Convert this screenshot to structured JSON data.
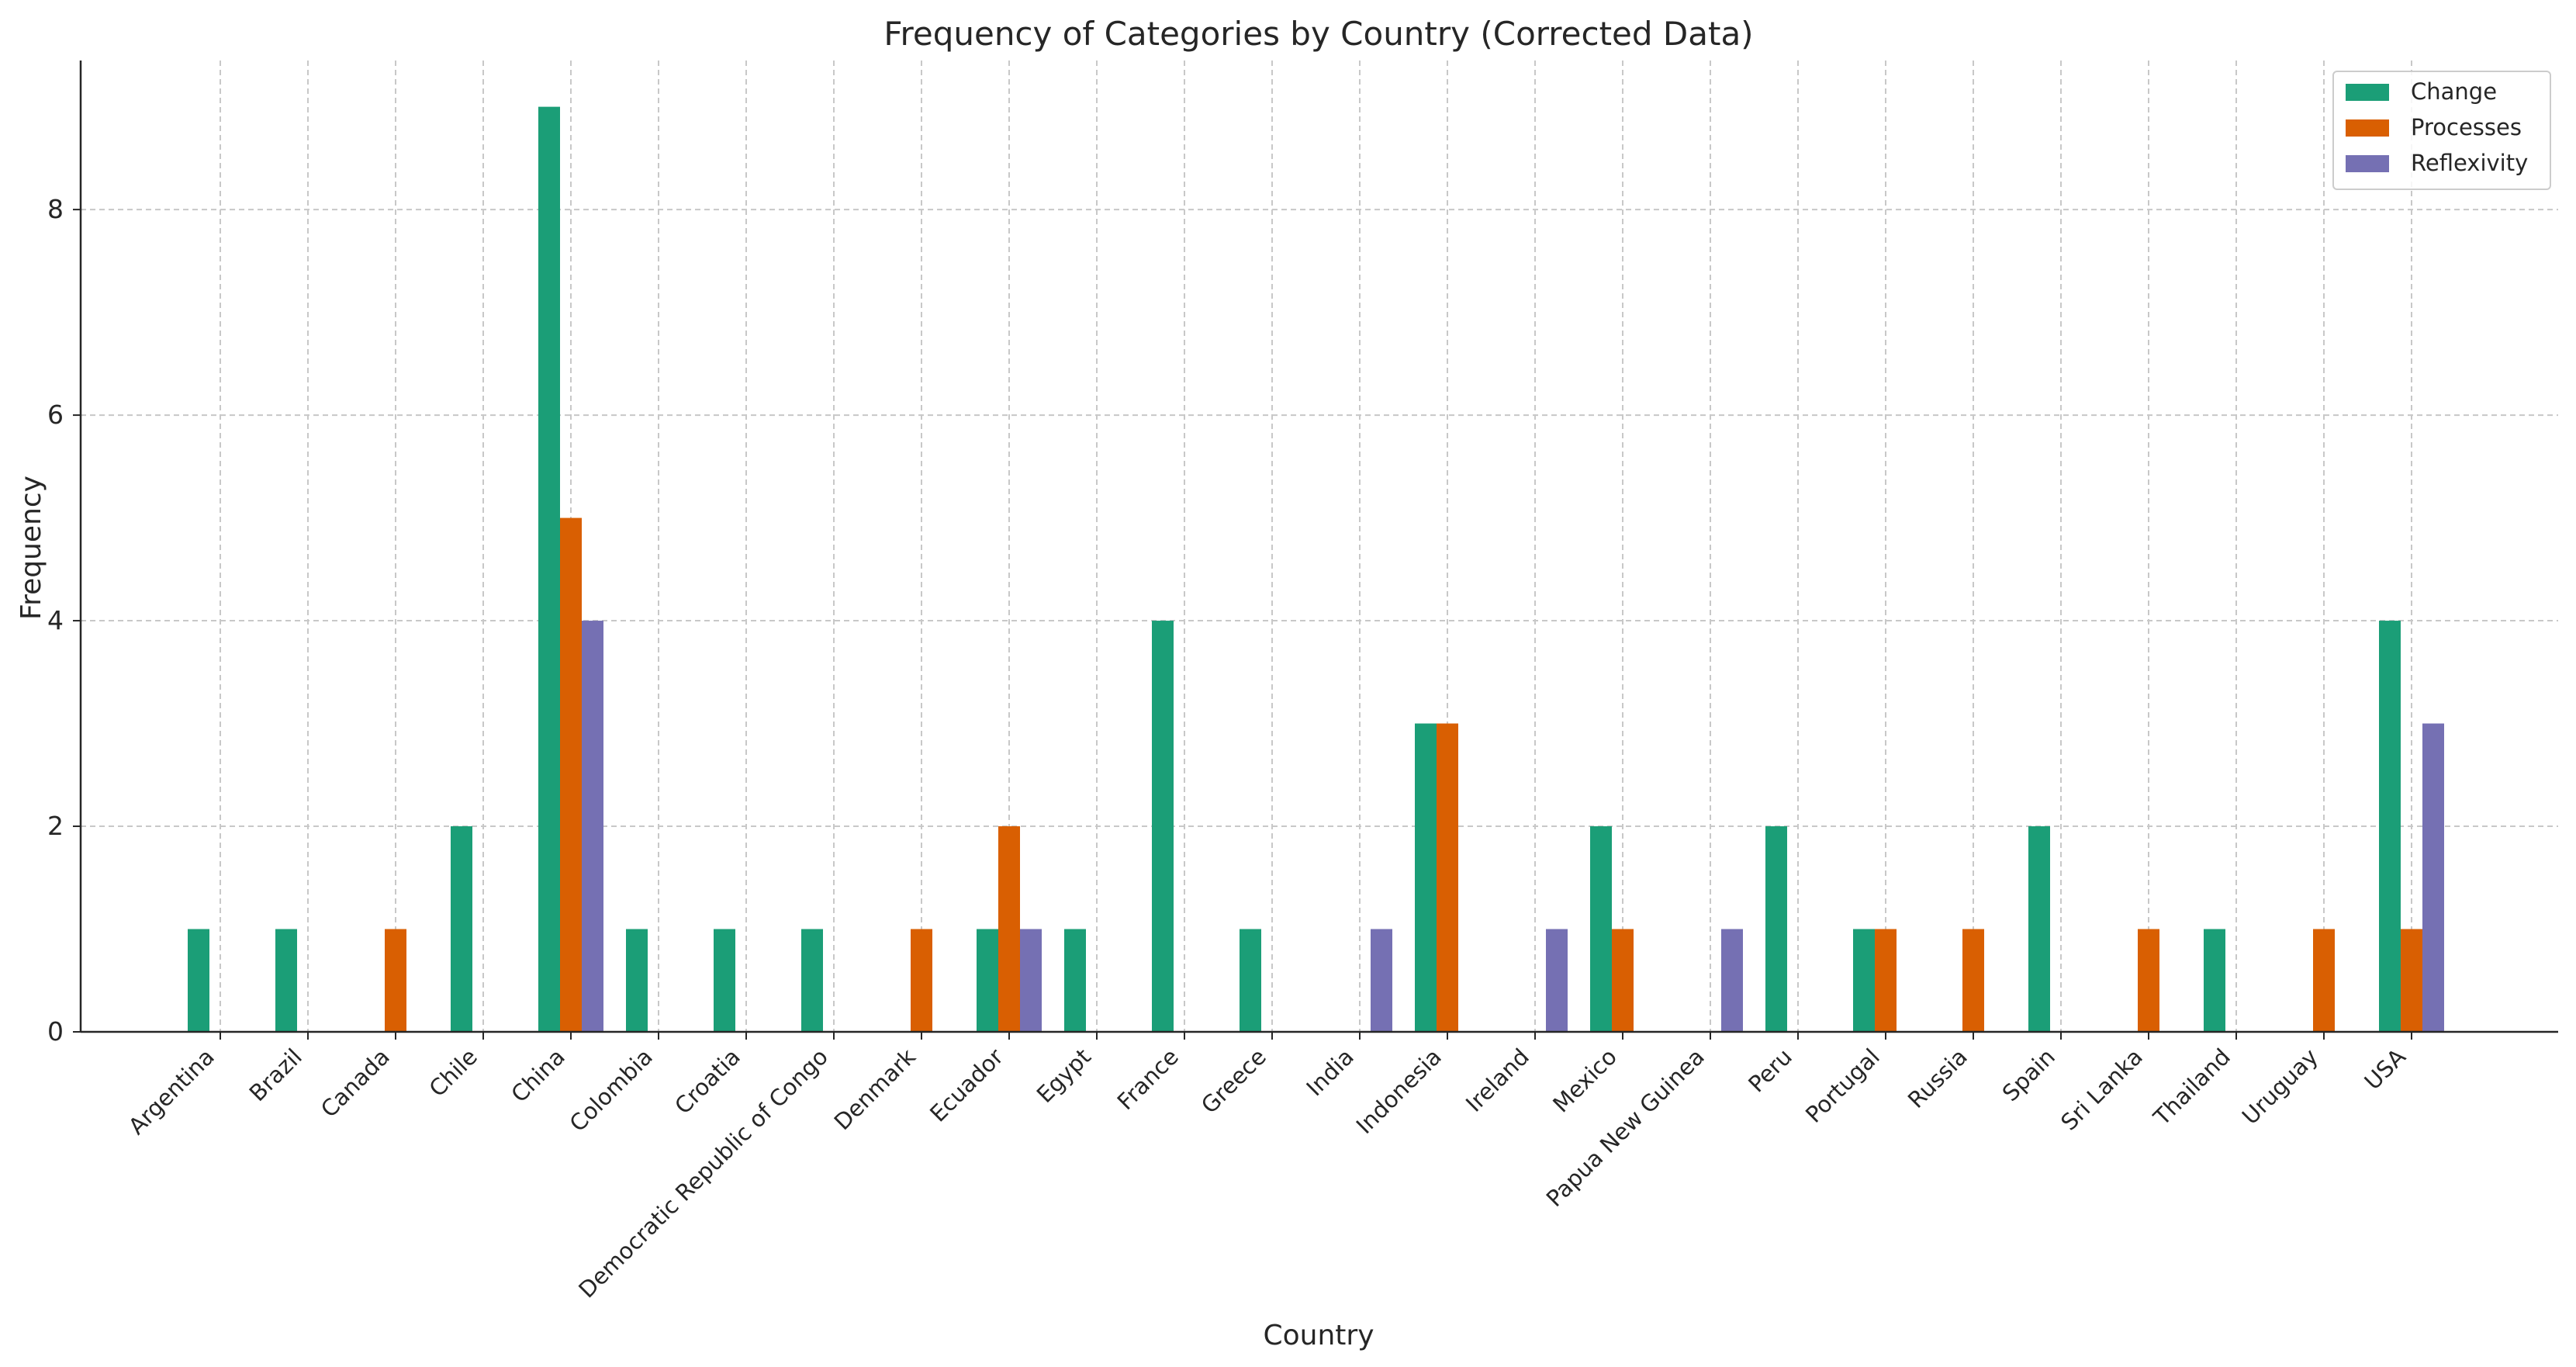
{
  "chart_data": {
    "type": "bar",
    "title": "Frequency of Categories by Country (Corrected Data)",
    "xlabel": "Country",
    "ylabel": "Frequency",
    "ylim": [
      0,
      9.45
    ],
    "yticks": [
      0,
      2,
      4,
      6,
      8
    ],
    "grid": true,
    "legend_position": "top-right",
    "categories": [
      "Argentina",
      "Brazil",
      "Canada",
      "Chile",
      "China",
      "Colombia",
      "Croatia",
      "Democratic Republic of Congo",
      "Denmark",
      "Ecuador",
      "Egypt",
      "France",
      "Greece",
      "India",
      "Indonesia",
      "Ireland",
      "Mexico",
      "Papua New Guinea",
      "Peru",
      "Portugal",
      "Russia",
      "Spain",
      "Sri Lanka",
      "Thailand",
      "Uruguay",
      "USA"
    ],
    "series": [
      {
        "name": "Change",
        "color": "#1b9e77",
        "values": [
          1,
          1,
          0,
          2,
          9,
          1,
          1,
          1,
          0,
          1,
          1,
          4,
          1,
          0,
          3,
          0,
          2,
          0,
          2,
          1,
          0,
          2,
          0,
          1,
          0,
          4
        ]
      },
      {
        "name": "Processes",
        "color": "#d95f02",
        "values": [
          0,
          0,
          1,
          0,
          5,
          0,
          0,
          0,
          1,
          2,
          0,
          0,
          0,
          0,
          3,
          0,
          1,
          0,
          0,
          1,
          1,
          0,
          1,
          0,
          1,
          1
        ]
      },
      {
        "name": "Reflexivity",
        "color": "#7570b3",
        "values": [
          0,
          0,
          0,
          0,
          4,
          0,
          0,
          0,
          0,
          1,
          0,
          0,
          0,
          1,
          0,
          1,
          0,
          1,
          0,
          0,
          0,
          0,
          0,
          0,
          0,
          3
        ]
      }
    ]
  }
}
